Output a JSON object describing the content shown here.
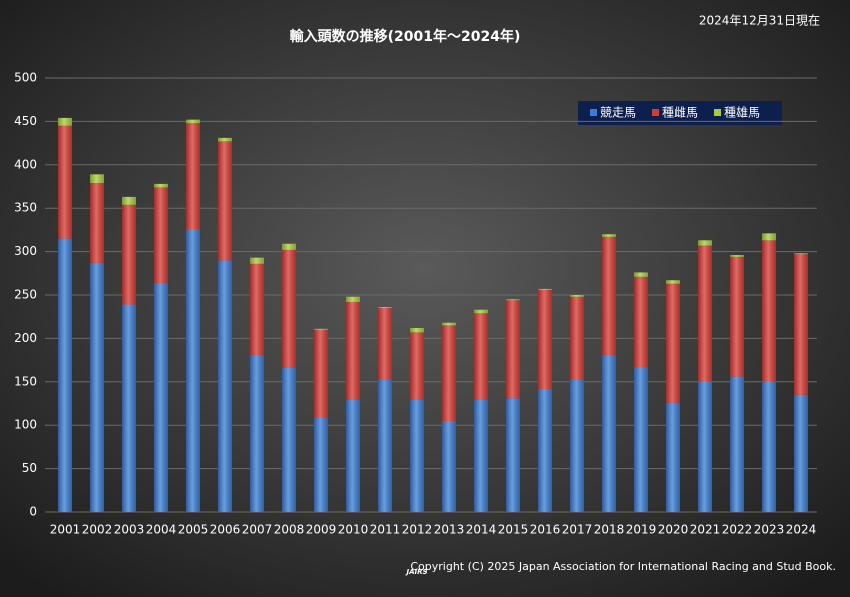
{
  "chart_data": {
    "type": "stacked_bar",
    "title": "輸入頭数の推移(2001年～2024年)",
    "annotations": [
      "2024年12月31日現在",
      "Copyright (C) 2025 Japan Association for International Racing and Stud Book.",
      "JAIRS"
    ],
    "categories": [
      "2001",
      "2002",
      "2003",
      "2004",
      "2005",
      "2006",
      "2007",
      "2008",
      "2009",
      "2010",
      "2011",
      "2012",
      "2013",
      "2014",
      "2015",
      "2016",
      "2017",
      "2018",
      "2019",
      "2020",
      "2021",
      "2022",
      "2023",
      "2024"
    ],
    "series": [
      {
        "name": "競走馬",
        "color": "#3a7bd5",
        "values": [
          315,
          287,
          239,
          264,
          326,
          290,
          181,
          166,
          109,
          129,
          153,
          130,
          105,
          129,
          131,
          142,
          153,
          181,
          167,
          126,
          151,
          156,
          151,
          135
        ]
      },
      {
        "name": "種雌馬",
        "color": "#d63a32",
        "values": [
          130,
          92,
          115,
          110,
          122,
          137,
          105,
          136,
          101,
          113,
          82,
          77,
          110,
          100,
          113,
          114,
          95,
          136,
          104,
          137,
          156,
          138,
          162,
          162
        ]
      },
      {
        "name": "種雄馬",
        "color": "#a8cc3c",
        "values": [
          9,
          10,
          9,
          4,
          4,
          4,
          7,
          7,
          1,
          6,
          1,
          5,
          3,
          4,
          1,
          1,
          2,
          3,
          5,
          4,
          6,
          2,
          8,
          1
        ]
      }
    ],
    "ylim": [
      0,
      500
    ],
    "yticks": [
      0,
      50,
      100,
      150,
      200,
      250,
      300,
      350,
      400,
      450,
      500
    ],
    "grid": true,
    "legend": "top-right"
  }
}
